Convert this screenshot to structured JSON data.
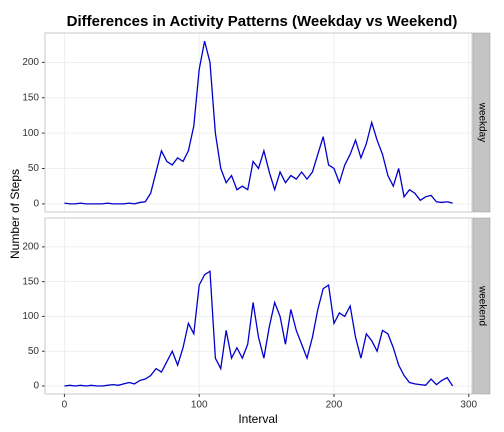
{
  "chart_data": {
    "type": "line",
    "title": "Differences in Activity Patterns (Weekday vs Weekend)",
    "x_label": "Interval",
    "y_label": "Number of Steps",
    "x": [
      0,
      4,
      8,
      12,
      16,
      20,
      24,
      28,
      32,
      36,
      40,
      44,
      48,
      52,
      56,
      60,
      64,
      68,
      72,
      76,
      80,
      84,
      88,
      92,
      96,
      100,
      104,
      108,
      112,
      116,
      120,
      124,
      128,
      132,
      136,
      140,
      144,
      148,
      152,
      156,
      160,
      164,
      168,
      172,
      176,
      180,
      184,
      188,
      192,
      196,
      200,
      204,
      208,
      212,
      216,
      220,
      224,
      228,
      232,
      236,
      240,
      244,
      248,
      252,
      256,
      260,
      264,
      268,
      272,
      276,
      280,
      284,
      288
    ],
    "series": [
      {
        "name": "weekday",
        "color": "#0000cc",
        "values": [
          1,
          0,
          0,
          1,
          0,
          0,
          0,
          0,
          1,
          0,
          0,
          0,
          1,
          0,
          2,
          3,
          15,
          45,
          75,
          60,
          55,
          65,
          60,
          75,
          110,
          190,
          230,
          200,
          100,
          50,
          30,
          40,
          20,
          25,
          20,
          60,
          50,
          75,
          45,
          20,
          45,
          30,
          40,
          35,
          45,
          35,
          45,
          70,
          95,
          55,
          50,
          30,
          55,
          70,
          90,
          65,
          85,
          115,
          90,
          70,
          40,
          25,
          50,
          10,
          20,
          15,
          5,
          10,
          12,
          3,
          2,
          3,
          1
        ]
      },
      {
        "name": "weekend",
        "color": "#0000cc",
        "values": [
          0,
          1,
          0,
          1,
          0,
          1,
          0,
          0,
          1,
          2,
          1,
          3,
          5,
          3,
          8,
          10,
          15,
          25,
          20,
          35,
          50,
          30,
          55,
          90,
          75,
          145,
          160,
          165,
          40,
          25,
          80,
          40,
          55,
          40,
          60,
          120,
          70,
          40,
          85,
          120,
          100,
          60,
          110,
          80,
          60,
          40,
          70,
          110,
          140,
          145,
          90,
          105,
          100,
          115,
          70,
          40,
          75,
          65,
          50,
          80,
          75,
          55,
          30,
          15,
          5,
          3,
          2,
          1,
          10,
          2,
          8,
          12,
          0
        ]
      }
    ],
    "xlim": [
      -14.4,
      302.4
    ],
    "xticks": [
      0,
      100,
      200,
      300
    ],
    "ylim": [
      -11.5,
      241.5
    ],
    "yticks": [
      0,
      50,
      100,
      150,
      200
    ],
    "grid": true
  }
}
